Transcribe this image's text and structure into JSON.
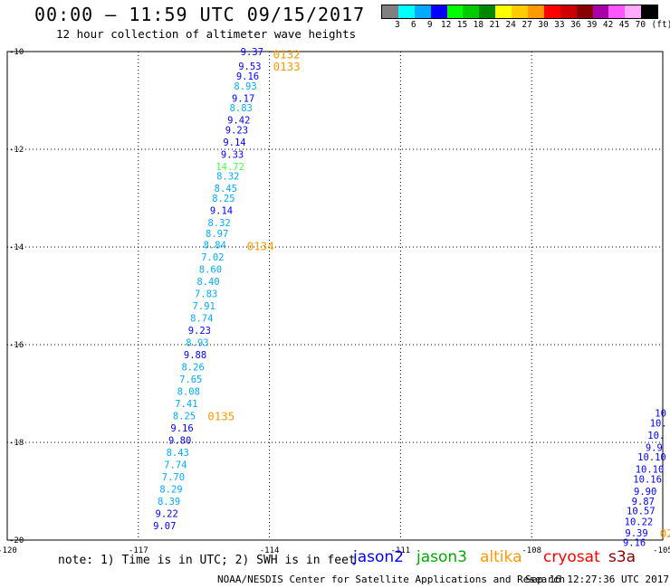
{
  "title": "00:00 – 11:59 UTC 09/15/2017",
  "subtitle": "12 hour collection of altimeter wave heights",
  "legend": {
    "unit": "(ft)",
    "bins": [
      {
        "label": "3",
        "color": "#808080"
      },
      {
        "label": "6",
        "color": "#00ffff"
      },
      {
        "label": "9",
        "color": "#00aaff"
      },
      {
        "label": "12",
        "color": "#0000ff"
      },
      {
        "label": "15",
        "color": "#00ff00"
      },
      {
        "label": "18",
        "color": "#00cc00"
      },
      {
        "label": "21",
        "color": "#008800"
      },
      {
        "label": "24",
        "color": "#ffff00"
      },
      {
        "label": "27",
        "color": "#ffcc00"
      },
      {
        "label": "30",
        "color": "#ff9900"
      },
      {
        "label": "33",
        "color": "#ff0000"
      },
      {
        "label": "36",
        "color": "#cc0000"
      },
      {
        "label": "39",
        "color": "#880000"
      },
      {
        "label": "42",
        "color": "#aa00aa"
      },
      {
        "label": "45",
        "color": "#ff55ff"
      },
      {
        "label": "70",
        "color": "#ffaaff"
      },
      {
        "label": "",
        "color": "#000000"
      }
    ]
  },
  "axes": {
    "lon_ticks": [
      "-120",
      "-117",
      "-114",
      "-111",
      "-108",
      "-105"
    ],
    "lat_ticks": [
      "-10",
      "-12",
      "-14",
      "-16",
      "-18",
      "-20"
    ]
  },
  "chart_data": {
    "type": "scatter",
    "xlabel": "",
    "ylabel": "",
    "xlim": [
      -120,
      -105
    ],
    "ylim": [
      -20,
      -10
    ],
    "grid": true,
    "track_a": {
      "satellite": "altika",
      "times": [
        {
          "label": "0132",
          "lon": -114.0,
          "lat": -10.05
        },
        {
          "label": "0133",
          "lon": -114.0,
          "lat": -10.3
        },
        {
          "label": "0134",
          "lon": -114.6,
          "lat": -13.97
        },
        {
          "label": "0135",
          "lon": -115.5,
          "lat": -17.45
        }
      ],
      "points": [
        {
          "lon": -114.4,
          "lat": -10.0,
          "swh": "9.37",
          "color": "#0000ff"
        },
        {
          "lon": -114.45,
          "lat": -10.3,
          "swh": "9.53",
          "color": "#0000ff"
        },
        {
          "lon": -114.5,
          "lat": -10.5,
          "swh": "9.16",
          "color": "#0000ff"
        },
        {
          "lon": -114.55,
          "lat": -10.7,
          "swh": "8.93",
          "color": "#00aaff"
        },
        {
          "lon": -114.6,
          "lat": -10.95,
          "swh": "9.17",
          "color": "#0000ff"
        },
        {
          "lon": -114.65,
          "lat": -11.15,
          "swh": "8.83",
          "color": "#00aaff"
        },
        {
          "lon": -114.7,
          "lat": -11.4,
          "swh": "9.42",
          "color": "#0000ff"
        },
        {
          "lon": -114.75,
          "lat": -11.6,
          "swh": "9.23",
          "color": "#0000ff"
        },
        {
          "lon": -114.8,
          "lat": -11.85,
          "swh": "9.14",
          "color": "#0000ff"
        },
        {
          "lon": -114.85,
          "lat": -12.1,
          "swh": "9.33",
          "color": "#0000ff"
        },
        {
          "lon": -114.9,
          "lat": -12.35,
          "swh": "14.72",
          "color": "#44ff44"
        },
        {
          "lon": -114.95,
          "lat": -12.55,
          "swh": "8.32",
          "color": "#00aaff"
        },
        {
          "lon": -115.0,
          "lat": -12.8,
          "swh": "8.45",
          "color": "#00aaff"
        },
        {
          "lon": -115.05,
          "lat": -13.0,
          "swh": "8.25",
          "color": "#00aaff"
        },
        {
          "lon": -115.1,
          "lat": -13.25,
          "swh": "9.14",
          "color": "#0000ff"
        },
        {
          "lon": -115.15,
          "lat": -13.5,
          "swh": "8.32",
          "color": "#00aaff"
        },
        {
          "lon": -115.2,
          "lat": -13.72,
          "swh": "8.97",
          "color": "#00aaff"
        },
        {
          "lon": -115.25,
          "lat": -13.95,
          "swh": "8.84",
          "color": "#00aaff"
        },
        {
          "lon": -115.3,
          "lat": -14.2,
          "swh": "7.02",
          "color": "#00aaff"
        },
        {
          "lon": -115.35,
          "lat": -14.45,
          "swh": "8.60",
          "color": "#00aaff"
        },
        {
          "lon": -115.4,
          "lat": -14.7,
          "swh": "8.40",
          "color": "#00aaff"
        },
        {
          "lon": -115.45,
          "lat": -14.95,
          "swh": "7.83",
          "color": "#00aaff"
        },
        {
          "lon": -115.5,
          "lat": -15.2,
          "swh": "7.91",
          "color": "#00aaff"
        },
        {
          "lon": -115.55,
          "lat": -15.45,
          "swh": "8.74",
          "color": "#00aaff"
        },
        {
          "lon": -115.6,
          "lat": -15.7,
          "swh": "9.23",
          "color": "#0000ff"
        },
        {
          "lon": -115.65,
          "lat": -15.95,
          "swh": "8.93",
          "color": "#00aaff"
        },
        {
          "lon": -115.7,
          "lat": -16.2,
          "swh": "9.88",
          "color": "#0000ff"
        },
        {
          "lon": -115.75,
          "lat": -16.45,
          "swh": "8.26",
          "color": "#00aaff"
        },
        {
          "lon": -115.8,
          "lat": -16.7,
          "swh": "7.65",
          "color": "#00aaff"
        },
        {
          "lon": -115.85,
          "lat": -16.95,
          "swh": "8.08",
          "color": "#00aaff"
        },
        {
          "lon": -115.9,
          "lat": -17.2,
          "swh": "7.41",
          "color": "#00aaff"
        },
        {
          "lon": -115.95,
          "lat": -17.45,
          "swh": "8.25",
          "color": "#00aaff"
        },
        {
          "lon": -116.0,
          "lat": -17.7,
          "swh": "9.16",
          "color": "#0000ff"
        },
        {
          "lon": -116.05,
          "lat": -17.95,
          "swh": "9.80",
          "color": "#0000ff"
        },
        {
          "lon": -116.1,
          "lat": -18.2,
          "swh": "8.43",
          "color": "#00aaff"
        },
        {
          "lon": -116.15,
          "lat": -18.45,
          "swh": "7.74",
          "color": "#00aaff"
        },
        {
          "lon": -116.2,
          "lat": -18.7,
          "swh": "7.70",
          "color": "#00aaff"
        },
        {
          "lon": -116.25,
          "lat": -18.95,
          "swh": "8.29",
          "color": "#00aaff"
        },
        {
          "lon": -116.3,
          "lat": -19.2,
          "swh": "8.39",
          "color": "#00aaff"
        },
        {
          "lon": -116.35,
          "lat": -19.45,
          "swh": "9.22",
          "color": "#0000ff"
        },
        {
          "lon": -116.4,
          "lat": -19.7,
          "swh": "9.07",
          "color": "#0000ff"
        }
      ]
    },
    "track_b": {
      "satellite": "jason3",
      "times": [
        {
          "label": "02",
          "lon": -105.15,
          "lat": -19.85
        }
      ],
      "points": [
        {
          "lon": -105.05,
          "lat": -17.4,
          "swh": "10",
          "color": "#0000ff"
        },
        {
          "lon": -105.1,
          "lat": -17.6,
          "swh": "10.",
          "color": "#0000ff"
        },
        {
          "lon": -105.15,
          "lat": -17.85,
          "swh": "10.",
          "color": "#0000ff"
        },
        {
          "lon": -105.2,
          "lat": -18.1,
          "swh": "9.9",
          "color": "#0000ff"
        },
        {
          "lon": -105.25,
          "lat": -18.3,
          "swh": "10.10",
          "color": "#0000ff"
        },
        {
          "lon": -105.3,
          "lat": -18.55,
          "swh": "10.10",
          "color": "#0000ff"
        },
        {
          "lon": -105.35,
          "lat": -18.75,
          "swh": "10.16",
          "color": "#0000ff"
        },
        {
          "lon": -105.4,
          "lat": -19.0,
          "swh": "9.90",
          "color": "#0000ff"
        },
        {
          "lon": -105.45,
          "lat": -19.2,
          "swh": "9.87",
          "color": "#0000ff"
        },
        {
          "lon": -105.5,
          "lat": -19.4,
          "swh": "10.57",
          "color": "#0000ff"
        },
        {
          "lon": -105.55,
          "lat": -19.62,
          "swh": "10.22",
          "color": "#0000ff"
        },
        {
          "lon": -105.6,
          "lat": -19.85,
          "swh": "9.39",
          "color": "#0000ff"
        },
        {
          "lon": -105.65,
          "lat": -20.05,
          "swh": "9.16",
          "color": "#0000ff"
        }
      ]
    }
  },
  "note": "note: 1) Time is in UTC; 2) SWH is in feet",
  "satellites": [
    {
      "name": "jason2",
      "color": "#0000ff"
    },
    {
      "name": "jason3",
      "color": "#00aa00"
    },
    {
      "name": "altika",
      "color": "#ff9900"
    },
    {
      "name": "cryosat",
      "color": "#ff0000"
    },
    {
      "name": "s3a",
      "color": "#880000"
    }
  ],
  "credit": "NOAA/NESDIS Center for Satellite Applications and Research",
  "timestamp": "Sep 16 12:27:36 UTC 2017"
}
